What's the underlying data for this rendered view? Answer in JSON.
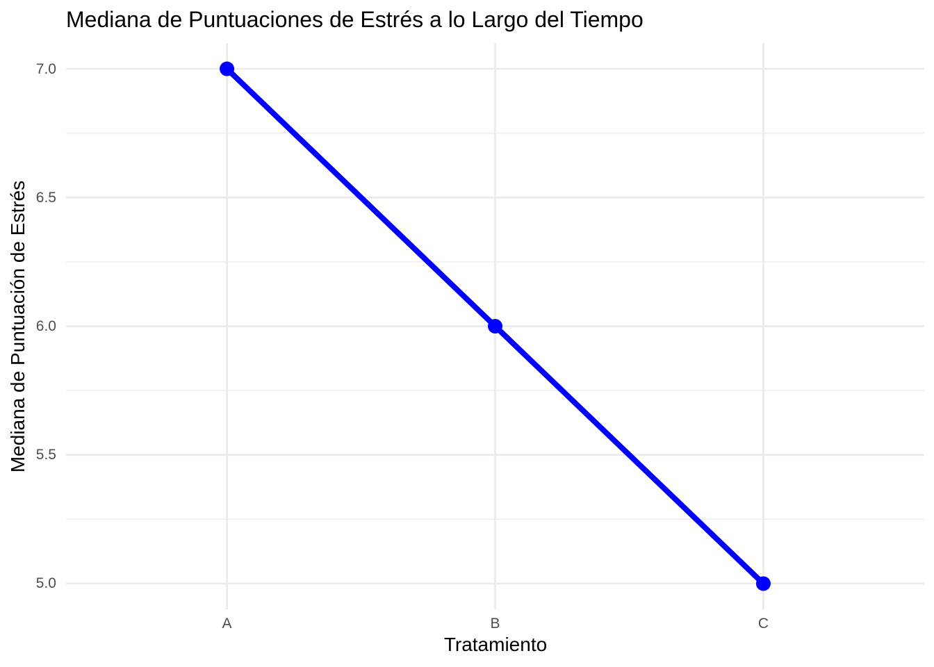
{
  "chart_data": {
    "type": "line",
    "title": "Mediana de Puntuaciones de Estrés a lo Largo del Tiempo",
    "xlabel": "Tratamiento",
    "ylabel": "Mediana de Puntuación de Estrés",
    "categories": [
      "A",
      "B",
      "C"
    ],
    "values": [
      7.0,
      6.0,
      5.0
    ],
    "ylim": [
      4.9,
      7.1
    ],
    "y_major_ticks": [
      "5.0",
      "5.5",
      "6.0",
      "6.5",
      "7.0"
    ],
    "y_minor_ticks": [
      5.25,
      5.75,
      6.25,
      6.75
    ],
    "grid": true,
    "legend_position": "none",
    "colors": {
      "line": "#0000FF",
      "point": "#0000FF",
      "grid": "#EBEBEB",
      "tick_label": "#4D4D4D",
      "axis_title": "#000000",
      "title": "#000000",
      "background": "#FFFFFF"
    }
  }
}
